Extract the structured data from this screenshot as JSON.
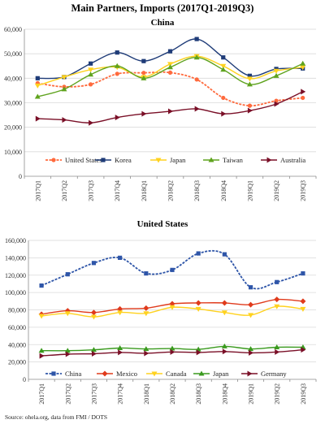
{
  "header": {
    "title": "Main Partners, Imports (2017Q1-2019Q3)"
  },
  "footer": {
    "source": "Source: ohela.org, data from FMI / DOTS"
  },
  "chart_data": [
    {
      "type": "line",
      "title": "China",
      "categories": [
        "2017Q1",
        "2017Q2",
        "2017Q3",
        "2017Q4",
        "2018Q1",
        "2018Q2",
        "2018Q3",
        "2018Q4",
        "2019Q1",
        "2019Q2",
        "2019Q3"
      ],
      "yticks": [
        "0",
        "10,000",
        "20,000",
        "30,000",
        "40,000",
        "50,000",
        "60,000"
      ],
      "ylim": [
        0,
        60000
      ],
      "grid": true,
      "legend": "bottom",
      "series": [
        {
          "name": "United States",
          "color": "#ff6a3d",
          "marker": "circle",
          "dashed": true,
          "values": [
            38000,
            36500,
            37500,
            41800,
            42200,
            42300,
            39500,
            32000,
            28800,
            30800,
            32000
          ]
        },
        {
          "name": "Korea",
          "color": "#1f3c78",
          "marker": "square",
          "dashed": false,
          "values": [
            40000,
            40500,
            46000,
            50500,
            47000,
            51000,
            56000,
            48500,
            41000,
            43800,
            44000
          ]
        },
        {
          "name": "Japan",
          "color": "#ffd21f",
          "marker": "triangle-down",
          "dashed": false,
          "values": [
            37000,
            40500,
            43500,
            44500,
            40500,
            45800,
            49000,
            45000,
            39800,
            43000,
            44500
          ]
        },
        {
          "name": "Taiwan",
          "color": "#5fa31e",
          "marker": "triangle-up",
          "dashed": false,
          "values": [
            32500,
            35500,
            41500,
            45000,
            40000,
            44500,
            48500,
            43500,
            37500,
            41000,
            46000
          ]
        },
        {
          "name": "Australia",
          "color": "#7a0f27",
          "marker": "triangle-right",
          "dashed": false,
          "values": [
            23500,
            23000,
            21800,
            24000,
            25500,
            26500,
            27500,
            25500,
            26800,
            29500,
            34500
          ]
        }
      ]
    },
    {
      "type": "line",
      "title": "United States",
      "categories": [
        "2017Q1",
        "2017Q2",
        "2017Q3",
        "2017Q4",
        "2018Q1",
        "2018Q2",
        "2018Q3",
        "2018Q4",
        "2019Q1",
        "2019Q2",
        "2019Q3"
      ],
      "yticks": [
        "0",
        "20,000",
        "40,000",
        "60,000",
        "80,000",
        "100,000",
        "120,000",
        "140,000",
        "160,000"
      ],
      "ylim": [
        0,
        160000
      ],
      "grid": true,
      "legend": "bottom",
      "series": [
        {
          "name": "China",
          "color": "#2e55a8",
          "marker": "square",
          "dashed": true,
          "values": [
            108000,
            121000,
            134000,
            140000,
            122000,
            126000,
            145000,
            144000,
            106000,
            112000,
            122000
          ]
        },
        {
          "name": "Mexico",
          "color": "#e03b1c",
          "marker": "diamond",
          "dashed": false,
          "values": [
            75000,
            79000,
            77000,
            81000,
            82000,
            87000,
            88000,
            88000,
            86000,
            92000,
            90000
          ]
        },
        {
          "name": "Canada",
          "color": "#ffd21f",
          "marker": "triangle-down",
          "dashed": false,
          "values": [
            73000,
            76000,
            72000,
            77000,
            76000,
            83000,
            81000,
            77000,
            74000,
            84000,
            81000
          ]
        },
        {
          "name": "Japan",
          "color": "#3a9a1e",
          "marker": "triangle-up",
          "dashed": false,
          "values": [
            33000,
            33000,
            34000,
            36000,
            35000,
            35500,
            34500,
            38000,
            35000,
            37000,
            37000
          ]
        },
        {
          "name": "Germany",
          "color": "#7a0f27",
          "marker": "triangle-right",
          "dashed": false,
          "values": [
            27000,
            29000,
            29500,
            31000,
            30000,
            31500,
            31000,
            32000,
            30500,
            31500,
            34000
          ]
        }
      ]
    }
  ]
}
